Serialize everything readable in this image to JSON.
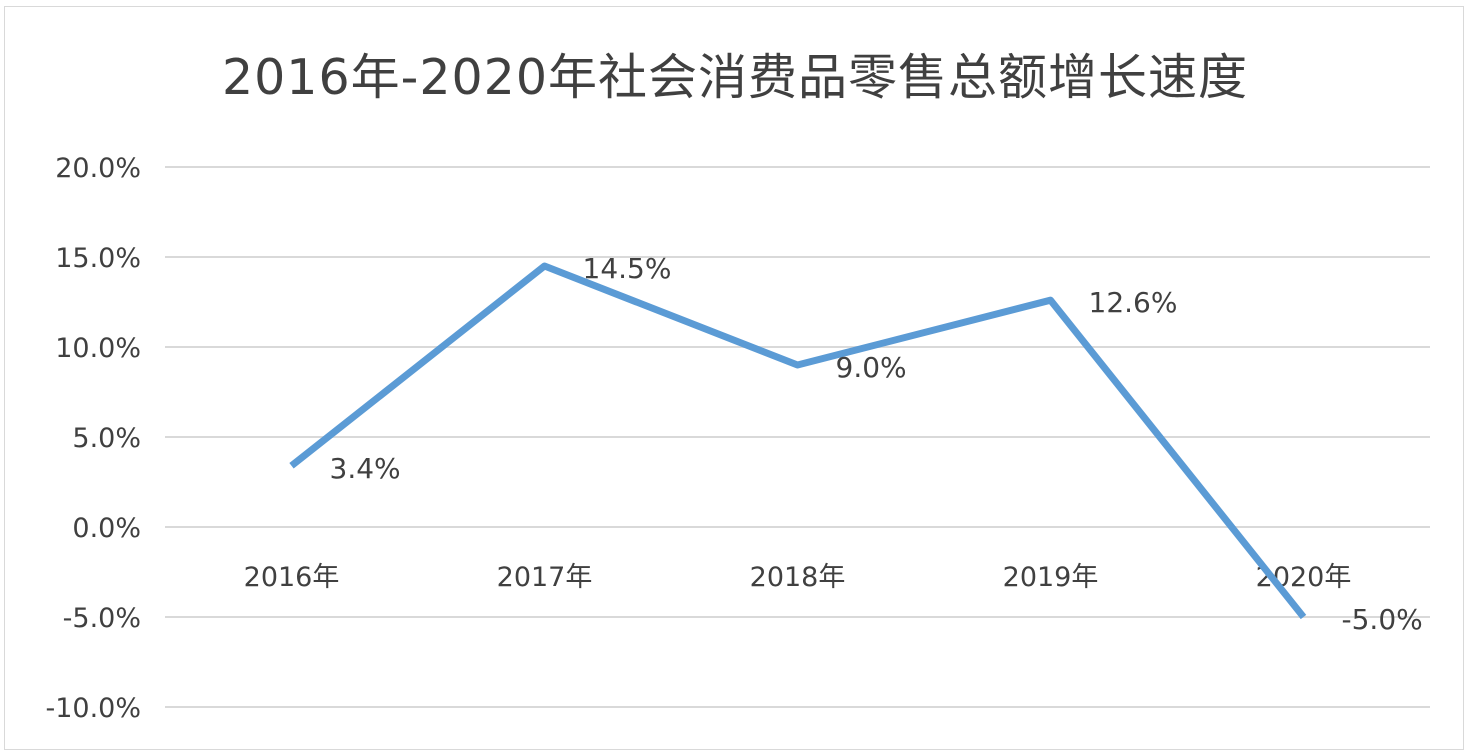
{
  "chart_data": {
    "type": "line",
    "title": "2016年-2020年社会消费品零售总额增长速度",
    "categories": [
      "2016年",
      "2017年",
      "2018年",
      "2019年",
      "2020年"
    ],
    "series": [
      {
        "values": [
          3.4,
          14.5,
          9.0,
          12.6,
          -5.0
        ],
        "data_labels": [
          "3.4%",
          "14.5%",
          "9.0%",
          "12.6%",
          "-5.0%"
        ],
        "color": "#5b9bd5"
      }
    ],
    "ylim": [
      -10,
      20
    ],
    "yticks": [
      20,
      15,
      10,
      5,
      0,
      -5,
      -10
    ],
    "ytick_labels": [
      "20.0%",
      "15.0%",
      "10.0%",
      "5.0%",
      "0.0%",
      "-5.0%",
      "-10.0%"
    ],
    "grid": true,
    "gridline_color": "#d9d9d9",
    "legend": false
  }
}
